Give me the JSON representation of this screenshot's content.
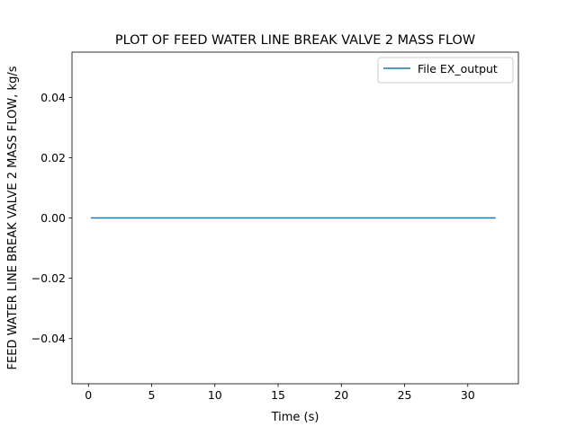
{
  "chart_data": {
    "type": "line",
    "title": "PLOT OF FEED WATER LINE BREAK VALVE 2 MASS FLOW",
    "xlabel": "Time (s)",
    "ylabel": "FEED WATER LINE BREAK VALVE 2 MASS FLOW, kg/s",
    "xlim": [
      -1.3,
      34.0
    ],
    "ylim": [
      -0.055,
      0.055
    ],
    "x_ticks": [
      0,
      5,
      10,
      15,
      20,
      25,
      30
    ],
    "x_tick_labels": [
      "0",
      "5",
      "10",
      "15",
      "20",
      "25",
      "30"
    ],
    "y_ticks": [
      -0.04,
      -0.02,
      0.0,
      0.02,
      0.04
    ],
    "y_tick_labels": [
      "−0.04",
      "−0.02",
      "0.00",
      "0.02",
      "0.04"
    ],
    "grid": false,
    "legend_position": "upper right",
    "series": [
      {
        "name": "File EX_output",
        "color": "#1f77b4",
        "x": [
          0.2,
          32.2
        ],
        "y": [
          0.0,
          0.0
        ]
      }
    ]
  }
}
